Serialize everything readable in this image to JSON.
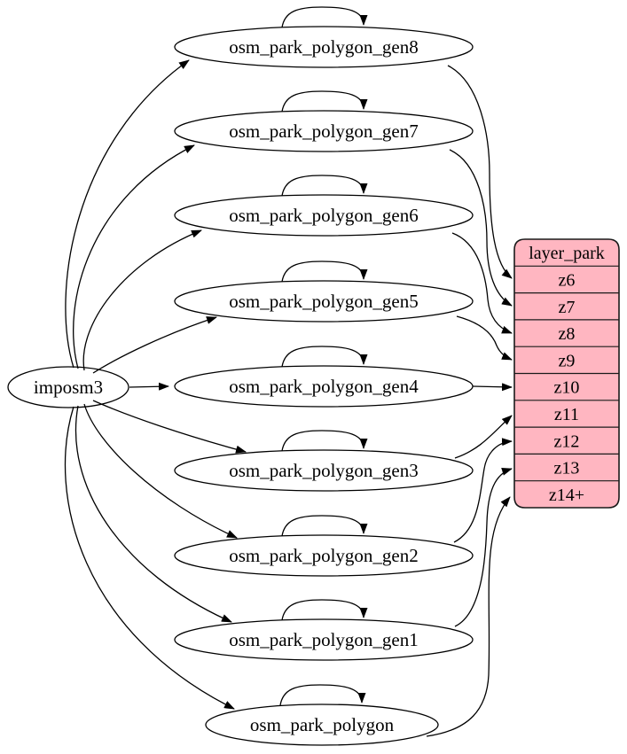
{
  "diagram": {
    "background": "#ffffff",
    "edge_color": "#000000",
    "text_color": "#000000",
    "ellipse_fill": "#ffffff",
    "ellipse_stroke": "#000000",
    "source_node": {
      "id": "imposm3",
      "label": "imposm3"
    },
    "table_nodes": [
      {
        "id": "osm_park_polygon_gen8",
        "label": "osm_park_polygon_gen8"
      },
      {
        "id": "osm_park_polygon_gen7",
        "label": "osm_park_polygon_gen7"
      },
      {
        "id": "osm_park_polygon_gen6",
        "label": "osm_park_polygon_gen6"
      },
      {
        "id": "osm_park_polygon_gen5",
        "label": "osm_park_polygon_gen5"
      },
      {
        "id": "osm_park_polygon_gen4",
        "label": "osm_park_polygon_gen4"
      },
      {
        "id": "osm_park_polygon_gen3",
        "label": "osm_park_polygon_gen3"
      },
      {
        "id": "osm_park_polygon_gen2",
        "label": "osm_park_polygon_gen2"
      },
      {
        "id": "osm_park_polygon_gen1",
        "label": "osm_park_polygon_gen1"
      },
      {
        "id": "osm_park_polygon",
        "label": "osm_park_polygon"
      }
    ],
    "record_node": {
      "id": "layer_park",
      "title": "layer_park",
      "rows": [
        "z6",
        "z7",
        "z8",
        "z9",
        "z10",
        "z11",
        "z12",
        "z13",
        "z14+"
      ],
      "fill": "#ffb6c1",
      "stroke": "#1a1a1a"
    },
    "edges": [
      {
        "from": "imposm3",
        "to": "osm_park_polygon_gen8"
      },
      {
        "from": "imposm3",
        "to": "osm_park_polygon_gen7"
      },
      {
        "from": "imposm3",
        "to": "osm_park_polygon_gen6"
      },
      {
        "from": "imposm3",
        "to": "osm_park_polygon_gen5"
      },
      {
        "from": "imposm3",
        "to": "osm_park_polygon_gen4"
      },
      {
        "from": "imposm3",
        "to": "osm_park_polygon_gen3"
      },
      {
        "from": "imposm3",
        "to": "osm_park_polygon_gen2"
      },
      {
        "from": "imposm3",
        "to": "osm_park_polygon_gen1"
      },
      {
        "from": "imposm3",
        "to": "osm_park_polygon"
      },
      {
        "from": "osm_park_polygon_gen8",
        "to": "osm_park_polygon_gen8"
      },
      {
        "from": "osm_park_polygon_gen7",
        "to": "osm_park_polygon_gen7"
      },
      {
        "from": "osm_park_polygon_gen6",
        "to": "osm_park_polygon_gen6"
      },
      {
        "from": "osm_park_polygon_gen5",
        "to": "osm_park_polygon_gen5"
      },
      {
        "from": "osm_park_polygon_gen4",
        "to": "osm_park_polygon_gen4"
      },
      {
        "from": "osm_park_polygon_gen3",
        "to": "osm_park_polygon_gen3"
      },
      {
        "from": "osm_park_polygon_gen2",
        "to": "osm_park_polygon_gen2"
      },
      {
        "from": "osm_park_polygon_gen1",
        "to": "osm_park_polygon_gen1"
      },
      {
        "from": "osm_park_polygon",
        "to": "osm_park_polygon"
      },
      {
        "from": "osm_park_polygon_gen8",
        "to": "z6"
      },
      {
        "from": "osm_park_polygon_gen7",
        "to": "z7"
      },
      {
        "from": "osm_park_polygon_gen6",
        "to": "z8"
      },
      {
        "from": "osm_park_polygon_gen5",
        "to": "z9"
      },
      {
        "from": "osm_park_polygon_gen4",
        "to": "z10"
      },
      {
        "from": "osm_park_polygon_gen3",
        "to": "z11"
      },
      {
        "from": "osm_park_polygon_gen2",
        "to": "z12"
      },
      {
        "from": "osm_park_polygon_gen1",
        "to": "z13"
      },
      {
        "from": "osm_park_polygon",
        "to": "z14+"
      }
    ]
  }
}
